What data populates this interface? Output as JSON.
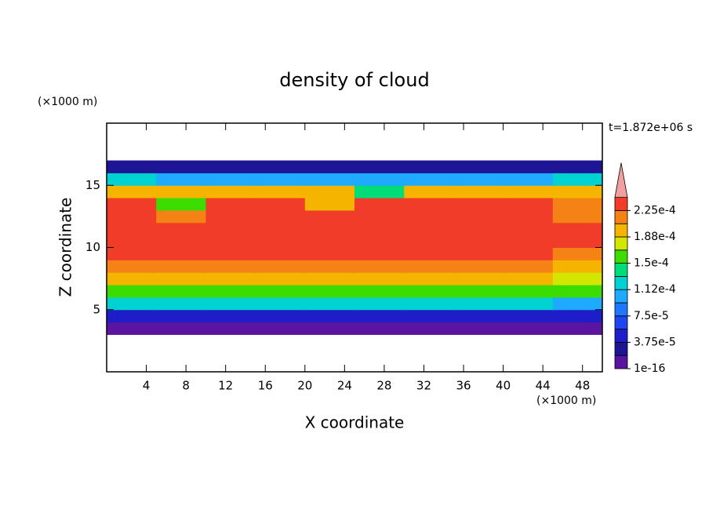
{
  "chart_data": {
    "type": "contour",
    "title": "density of cloud",
    "xlabel": "X coordinate",
    "ylabel": "Z coordinate",
    "xunit": "(×1000 m)",
    "yunit": "(×1000 m)",
    "time_label": "t=1.872e+06 s",
    "xlim": [
      0,
      50
    ],
    "ylim": [
      0,
      20
    ],
    "xticks": [
      4,
      8,
      12,
      16,
      20,
      24,
      28,
      32,
      36,
      40,
      44,
      48
    ],
    "yticks": [
      5,
      10,
      15
    ],
    "x": [
      2.5,
      7.5,
      12.5,
      17.5,
      22.5,
      27.5,
      32.5,
      37.5,
      42.5,
      47.5
    ],
    "y": [
      3.5,
      4.5,
      5.5,
      6.5,
      7.5,
      8.5,
      9.5,
      10.5,
      11.5,
      12.5,
      13.5,
      14.5,
      15.5,
      16.5
    ],
    "z": [
      [
        1.2e-05,
        1.2e-05,
        1.2e-05,
        1.2e-05,
        1.2e-05,
        1.2e-05,
        1.2e-05,
        1.2e-05,
        1.2e-05,
        1.2e-05
      ],
      [
        5e-05,
        5e-05,
        5e-05,
        5e-05,
        5e-05,
        5e-05,
        5e-05,
        5e-05,
        5e-05,
        4e-05
      ],
      [
        0.00012,
        0.00012,
        0.00012,
        0.00012,
        0.00012,
        0.00012,
        0.00012,
        0.00012,
        0.00012,
        0.0001
      ],
      [
        0.00016,
        0.00016,
        0.00016,
        0.00016,
        0.00016,
        0.00016,
        0.00016,
        0.00016,
        0.00016,
        0.00015
      ],
      [
        0.00019,
        0.00019,
        0.00019,
        0.00019,
        0.00019,
        0.00019,
        0.00019,
        0.00019,
        0.00019,
        0.00018
      ],
      [
        0.00021,
        0.00021,
        0.00021,
        0.00021,
        0.00021,
        0.00021,
        0.00021,
        0.00021,
        0.00021,
        0.0002
      ],
      [
        0.00023,
        0.00023,
        0.00023,
        0.00023,
        0.00023,
        0.00023,
        0.00023,
        0.00023,
        0.00023,
        0.00022
      ],
      [
        0.000235,
        0.000235,
        0.000235,
        0.000235,
        0.000235,
        0.000235,
        0.000235,
        0.000235,
        0.000235,
        0.00023
      ],
      [
        0.000235,
        0.000235,
        0.000235,
        0.000235,
        0.00023,
        0.000235,
        0.000235,
        0.000235,
        0.000235,
        0.00023
      ],
      [
        0.000235,
        0.00022,
        0.000235,
        0.000235,
        0.000235,
        0.000235,
        0.000235,
        0.000235,
        0.000235,
        0.00022
      ],
      [
        0.00023,
        0.00016,
        0.00023,
        0.00023,
        0.0002,
        0.00023,
        0.00023,
        0.00023,
        0.00023,
        0.00021
      ],
      [
        0.0002,
        0.00019,
        0.0002,
        0.0002,
        0.0002,
        0.00014,
        0.0002,
        0.0002,
        0.0002,
        0.00019
      ],
      [
        0.00013,
        0.00011,
        0.00011,
        0.00011,
        0.00011,
        0.0001,
        0.00011,
        0.00011,
        0.00011,
        0.00012
      ],
      [
        2.5e-05,
        2.5e-05,
        2.5e-05,
        2.5e-05,
        2.5e-05,
        2.5e-05,
        2.5e-05,
        2.5e-05,
        2.5e-05,
        2.5e-05
      ]
    ],
    "levels": [
      1e-16,
      1.875e-05,
      3.75e-05,
      5.625e-05,
      7.5e-05,
      9.375e-05,
      0.0001125,
      0.00013125,
      0.00015,
      0.00016875,
      0.0001875,
      0.00020625,
      0.000225,
      0.00024375
    ],
    "colors": [
      "#5a14a0",
      "#1e1496",
      "#1e1ec8",
      "#1e46f0",
      "#1e78ff",
      "#1eaaff",
      "#00d2d2",
      "#00dc78",
      "#3cdc00",
      "#d2e600",
      "#f5b400",
      "#f58214",
      "#f03c28"
    ],
    "extend_color": "#f0a0a0",
    "cticks": [
      {
        "value": 1e-16,
        "label": "1e-16"
      },
      {
        "value": 3.75e-05,
        "label": "3.75e-5"
      },
      {
        "value": 7.5e-05,
        "label": "7.5e-5"
      },
      {
        "value": 0.0001125,
        "label": "1.12e-4"
      },
      {
        "value": 0.00015,
        "label": "1.5e-4"
      },
      {
        "value": 0.0001875,
        "label": "1.88e-4"
      },
      {
        "value": 0.000225,
        "label": "2.25e-4"
      }
    ]
  }
}
